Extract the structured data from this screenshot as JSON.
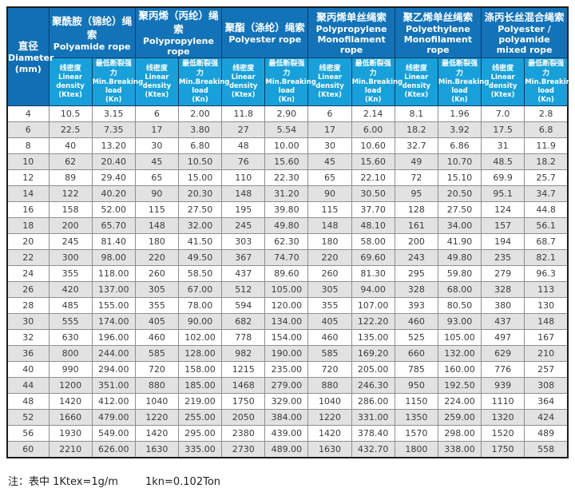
{
  "colors": {
    "header_blue": "#1373b9",
    "subheader_blue": "#18a0da",
    "alt_row_gray": "#e2e2e2",
    "outer_border": "#1b1b1b",
    "cell_border": "#8f8f8f",
    "body_text": "#3c3c3c"
  },
  "table": {
    "diameter_header": {
      "lines": [
        "直径",
        "Diameter",
        "(mm)"
      ]
    },
    "groups": [
      {
        "zh": "聚酰胺（锦纶）绳索",
        "en_lines": [
          "Polyamide rope"
        ]
      },
      {
        "zh": "聚丙烯（丙纶）绳索",
        "en_lines": [
          "Polypropylene rope"
        ]
      },
      {
        "zh": "聚酯（涤纶）绳索",
        "en_lines": [
          "Polyester rope"
        ]
      },
      {
        "zh": "聚丙烯单丝绳索",
        "en_lines": [
          "Polypropylene",
          "Monofilament rope"
        ]
      },
      {
        "zh": "聚乙烯单丝绳索",
        "en_lines": [
          "Polyethylene",
          "Monofilament rope"
        ]
      },
      {
        "zh": "涤丙长丝混合绳索",
        "en_lines": [
          "Polyester / polyamide",
          "mixed rope"
        ]
      }
    ],
    "sub_headers": {
      "density_lines": [
        "线密度",
        "Linear density",
        "(Ktex)"
      ],
      "breaking_lines": [
        "最低断裂强力",
        "Min.Breaking",
        "load",
        "(Kn)"
      ]
    },
    "rows": [
      [
        "4",
        "10.5",
        "3.15",
        "6",
        "2.00",
        "11.8",
        "2.90",
        "6",
        "2.14",
        "8.1",
        "1.96",
        "7.0",
        "2.8"
      ],
      [
        "6",
        "22.5",
        "7.35",
        "17",
        "3.80",
        "27",
        "5.54",
        "17",
        "6.00",
        "18.2",
        "3.92",
        "17.5",
        "6.8"
      ],
      [
        "8",
        "40",
        "13.20",
        "30",
        "6.80",
        "48",
        "10.00",
        "30",
        "10.60",
        "32.7",
        "6.86",
        "31",
        "11.9"
      ],
      [
        "10",
        "62",
        "20.40",
        "45",
        "10.50",
        "76",
        "15.60",
        "45",
        "15.60",
        "49",
        "10.70",
        "48.5",
        "18.2"
      ],
      [
        "12",
        "89",
        "29.40",
        "65",
        "15.00",
        "110",
        "22.30",
        "65",
        "22.10",
        "72",
        "15.10",
        "69.9",
        "25.7"
      ],
      [
        "14",
        "122",
        "40.20",
        "90",
        "20.30",
        "148",
        "31.20",
        "90",
        "30.50",
        "95",
        "20.50",
        "95.1",
        "34.7"
      ],
      [
        "16",
        "158",
        "52.00",
        "115",
        "27.50",
        "195",
        "39.80",
        "115",
        "37.70",
        "128",
        "27.50",
        "124",
        "44.8"
      ],
      [
        "18",
        "200",
        "65.70",
        "148",
        "32.00",
        "245",
        "49.80",
        "148",
        "48.10",
        "161",
        "34.00",
        "157",
        "56.1"
      ],
      [
        "20",
        "245",
        "81.40",
        "180",
        "41.50",
        "303",
        "62.30",
        "180",
        "58.00",
        "200",
        "41.90",
        "194",
        "68.7"
      ],
      [
        "22",
        "300",
        "98.00",
        "220",
        "49.50",
        "367",
        "74.70",
        "220",
        "69.60",
        "243",
        "49.80",
        "235",
        "82.1"
      ],
      [
        "24",
        "355",
        "118.00",
        "260",
        "58.50",
        "437",
        "89.60",
        "260",
        "81.30",
        "295",
        "59.80",
        "279",
        "96.3"
      ],
      [
        "26",
        "420",
        "137.00",
        "305",
        "67.00",
        "512",
        "105.00",
        "305",
        "94.00",
        "328",
        "68.00",
        "328",
        "113"
      ],
      [
        "28",
        "485",
        "155.00",
        "355",
        "78.00",
        "594",
        "120.00",
        "355",
        "107.00",
        "393",
        "80.50",
        "380",
        "130"
      ],
      [
        "30",
        "555",
        "174.00",
        "405",
        "90.00",
        "682",
        "134.00",
        "405",
        "122.20",
        "460",
        "93.00",
        "437",
        "148"
      ],
      [
        "32",
        "630",
        "196.00",
        "460",
        "102.00",
        "778",
        "154.00",
        "460",
        "135.00",
        "525",
        "105.00",
        "497",
        "167"
      ],
      [
        "36",
        "800",
        "244.00",
        "585",
        "128.00",
        "982",
        "190.00",
        "585",
        "169.20",
        "660",
        "132.00",
        "629",
        "210"
      ],
      [
        "40",
        "990",
        "294.00",
        "720",
        "158.00",
        "1215",
        "235.00",
        "720",
        "205.00",
        "785",
        "160.00",
        "776",
        "257"
      ],
      [
        "44",
        "1200",
        "351.00",
        "880",
        "185.00",
        "1468",
        "279.00",
        "880",
        "246.30",
        "950",
        "192.50",
        "939",
        "308"
      ],
      [
        "48",
        "1420",
        "412.00",
        "1040",
        "219.00",
        "1750",
        "329.00",
        "1040",
        "286.00",
        "1150",
        "224.00",
        "1110",
        "364"
      ],
      [
        "52",
        "1660",
        "479.00",
        "1220",
        "255.00",
        "2050",
        "384.00",
        "1220",
        "331.00",
        "1350",
        "259.00",
        "1320",
        "424"
      ],
      [
        "56",
        "1930",
        "549.00",
        "1420",
        "295.00",
        "2380",
        "439.00",
        "1420",
        "378.40",
        "1570",
        "298.00",
        "1520",
        "489"
      ],
      [
        "60",
        "2210",
        "626.00",
        "1630",
        "335.00",
        "2730",
        "489.00",
        "1630",
        "432.70",
        "1800",
        "338.00",
        "1750",
        "558"
      ]
    ]
  },
  "footnote": {
    "left": "注：表中 1Ktex=1g/m",
    "right": "1kn=0.102Ton"
  }
}
